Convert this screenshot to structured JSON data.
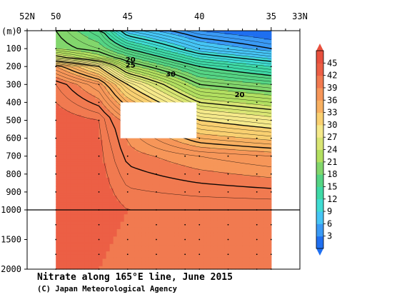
{
  "chart_data": {
    "type": "heatmap",
    "title": "Nitrate along 165°E line, June 2015",
    "credit": "(C) Japan Meteorological Agency",
    "depth_unit": "(m)",
    "x_axis": {
      "lim": [
        52,
        33
      ],
      "tick_labels": [
        {
          "value": 52,
          "text": "52N"
        },
        {
          "value": 50,
          "text": "50"
        },
        {
          "value": 45,
          "text": "45"
        },
        {
          "value": 40,
          "text": "40"
        },
        {
          "value": 35,
          "text": "35"
        },
        {
          "value": 33,
          "text": "33N"
        }
      ]
    },
    "y_axis": {
      "lim": [
        0,
        2000
      ],
      "break_at": 1000,
      "tick_labels": [
        "0",
        "100",
        "200",
        "300",
        "400",
        "500",
        "600",
        "700",
        "800",
        "900",
        "1000",
        "1500",
        "2000"
      ]
    },
    "colorbar": {
      "ticks": [
        "3",
        "6",
        "9",
        "12",
        "15",
        "18",
        "21",
        "24",
        "27",
        "30",
        "33",
        "36",
        "39",
        "42",
        "45"
      ],
      "colors": [
        "#1f6ff0",
        "#3a9af5",
        "#46c5f5",
        "#40dcd3",
        "#3fd9a6",
        "#55d484",
        "#82d66c",
        "#b2df60",
        "#d9e573",
        "#f5e98a",
        "#f9d071",
        "#f8b061",
        "#f69659",
        "#f17a50",
        "#ec5f45",
        "#e8503e"
      ]
    },
    "contour_labels": [
      "20",
      "25",
      "30",
      "20"
    ],
    "data_extent": {
      "lat_north": 50,
      "lat_south": 35
    },
    "stations_lat": [
      50,
      47,
      45,
      43,
      41,
      40,
      38,
      36,
      35
    ],
    "profiles": [
      {
        "lat": 50,
        "depth": [
          0,
          100,
          150,
          200,
          300,
          500,
          1000,
          2000
        ],
        "nitrate": [
          20,
          21,
          26,
          36,
          41,
          43,
          44,
          44
        ]
      },
      {
        "lat": 47,
        "depth": [
          0,
          100,
          150,
          200,
          300,
          500,
          1000,
          2000
        ],
        "nitrate": [
          16,
          19,
          22,
          30,
          37,
          42,
          43,
          42
        ]
      },
      {
        "lat": 45,
        "depth": [
          0,
          100,
          200,
          300,
          400,
          500,
          1000,
          2000
        ],
        "nitrate": [
          8,
          15,
          22,
          30,
          34,
          38,
          42,
          41
        ]
      },
      {
        "lat": 40,
        "depth": [
          0,
          100,
          200,
          300,
          500,
          700,
          1000,
          2000
        ],
        "nitrate": [
          3,
          8,
          15,
          20,
          30,
          38,
          42,
          41
        ]
      },
      {
        "lat": 35,
        "depth": [
          0,
          100,
          200,
          300,
          500,
          700,
          1000,
          2000
        ],
        "nitrate": [
          1,
          5,
          12,
          18,
          28,
          37,
          42,
          41
        ]
      }
    ],
    "missing_region": {
      "lat": [
        45.5,
        40.2
      ],
      "depth": [
        400,
        600
      ]
    }
  }
}
